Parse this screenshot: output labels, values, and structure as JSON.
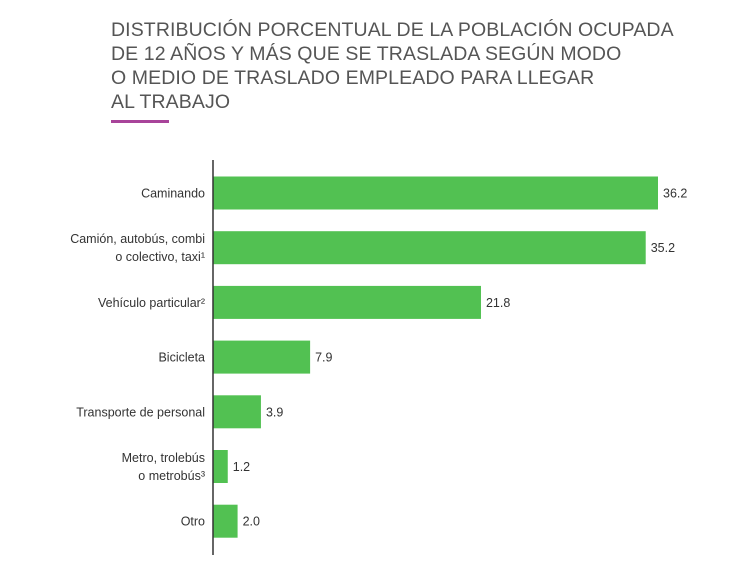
{
  "title_lines": [
    "DISTRIBUCIÓN PORCENTUAL DE LA POBLACIÓN OCUPADA",
    "DE 12 AÑOS Y MÁS QUE SE TRASLADA SEGÚN MODO",
    "O MEDIO DE TRASLADO EMPLEADO PARA LLEGAR",
    "AL TRABAJO"
  ],
  "colors": {
    "bar": "#52c152",
    "accent": "#a8449a",
    "axis": "#333333",
    "title": "#555555"
  },
  "chart_data": {
    "type": "bar",
    "orientation": "horizontal",
    "title": "DISTRIBUCIÓN PORCENTUAL DE LA POBLACIÓN OCUPADA DE 12 AÑOS Y MÁS QUE SE TRASLADA SEGÚN MODO O MEDIO DE TRASLADO EMPLEADO PARA LLEGAR AL TRABAJO",
    "categories": [
      [
        "Caminando"
      ],
      [
        "Camión, autobús, combi",
        "o colectivo, taxi¹"
      ],
      [
        "Vehículo particular²"
      ],
      [
        "Bicicleta"
      ],
      [
        "Transporte de personal"
      ],
      [
        "Metro, trolebús",
        "o metrobús³"
      ],
      [
        "Otro"
      ]
    ],
    "values": [
      36.2,
      35.2,
      21.8,
      7.9,
      3.9,
      1.2,
      2.0
    ],
    "value_labels": [
      "36.2",
      "35.2",
      "21.8",
      "7.9",
      "3.9",
      "1.2",
      "2.0"
    ],
    "xlim": [
      0,
      36.2
    ],
    "grid": false,
    "legend": "none"
  }
}
